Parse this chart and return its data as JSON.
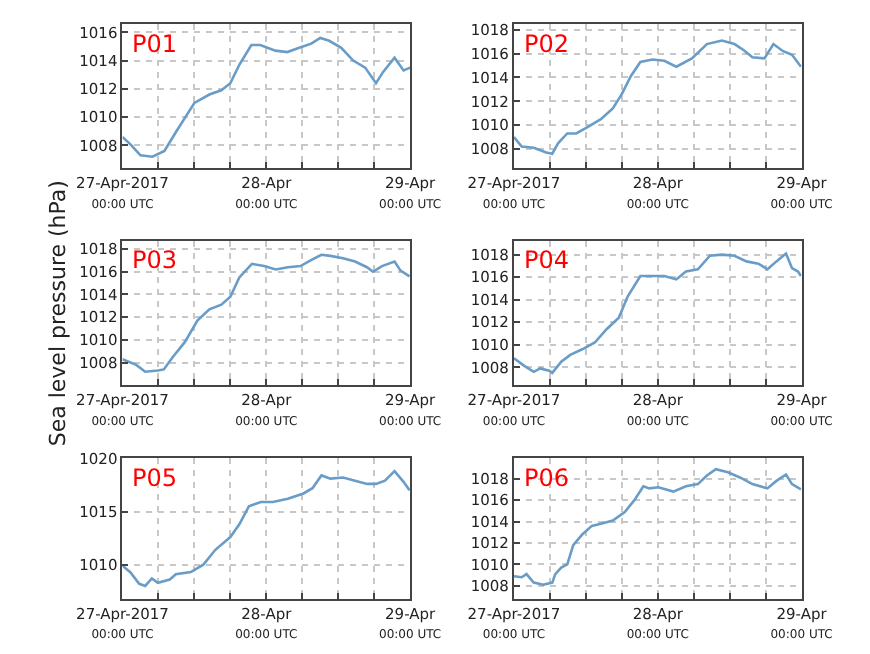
{
  "chart_data": [
    {
      "type": "line",
      "title": "P01",
      "xlim": [
        "2017-04-27T00:00",
        "2017-04-29T00:00"
      ],
      "ylim": [
        1006.4,
        1016.6
      ],
      "yticks": [
        1008,
        1010,
        1012,
        1014,
        1016
      ],
      "xticks": [
        {
          "value": "2017-04-27T00:00",
          "label": "27-Apr-2017\n00:00 UTC"
        },
        {
          "value": "2017-04-27T06:00",
          "label": null
        },
        {
          "value": "2017-04-27T12:00",
          "label": null
        },
        {
          "value": "2017-04-27T18:00",
          "label": null
        },
        {
          "value": "2017-04-28T00:00",
          "label": "28-Apr\n00:00 UTC"
        },
        {
          "value": "2017-04-28T06:00",
          "label": null
        },
        {
          "value": "2017-04-28T12:00",
          "label": null
        },
        {
          "value": "2017-04-28T18:00",
          "label": null
        },
        {
          "value": "2017-04-29T00:00",
          "label": "29-Apr\n00:00 UTC"
        }
      ],
      "grid": true,
      "series": [
        {
          "color": "#6a9cc8",
          "x": [
            "2017-04-27T00:00",
            "2017-04-27T01:30",
            "2017-04-27T03:00",
            "2017-04-27T05:00",
            "2017-04-27T07:00",
            "2017-04-27T09:00",
            "2017-04-27T10:30",
            "2017-04-27T12:00",
            "2017-04-27T14:30",
            "2017-04-27T16:30",
            "2017-04-27T18:00",
            "2017-04-27T19:30",
            "2017-04-27T21:30",
            "2017-04-27T23:00",
            "2017-04-28T01:30",
            "2017-04-28T03:30",
            "2017-04-28T05:30",
            "2017-04-28T07:30",
            "2017-04-28T09:00",
            "2017-04-28T10:30",
            "2017-04-28T12:30",
            "2017-04-28T14:30",
            "2017-04-28T16:30",
            "2017-04-28T18:18",
            "2017-04-28T19:30",
            "2017-04-28T21:24",
            "2017-04-28T22:54",
            "2017-04-29T00:00"
          ],
          "values": [
            1008.6,
            1008.0,
            1007.3,
            1007.2,
            1007.6,
            1009.0,
            1010.0,
            1011.0,
            1011.6,
            1011.9,
            1012.4,
            1013.7,
            1015.1,
            1015.1,
            1014.7,
            1014.6,
            1014.9,
            1015.2,
            1015.6,
            1015.4,
            1014.9,
            1014.0,
            1013.5,
            1012.4,
            1013.2,
            1014.2,
            1013.3,
            1013.5
          ]
        }
      ]
    },
    {
      "type": "line",
      "title": "P02",
      "xlim": [
        "2017-04-27T00:00",
        "2017-04-29T00:00"
      ],
      "ylim": [
        1006.4,
        1018.5
      ],
      "yticks": [
        1008,
        1010,
        1012,
        1014,
        1016,
        1018
      ],
      "xticks": [
        {
          "value": "2017-04-27T00:00",
          "label": "27-Apr-2017\n00:00 UTC"
        },
        {
          "value": "2017-04-27T06:00",
          "label": null
        },
        {
          "value": "2017-04-27T12:00",
          "label": null
        },
        {
          "value": "2017-04-27T18:00",
          "label": null
        },
        {
          "value": "2017-04-28T00:00",
          "label": "28-Apr\n00:00 UTC"
        },
        {
          "value": "2017-04-28T06:00",
          "label": null
        },
        {
          "value": "2017-04-28T12:00",
          "label": null
        },
        {
          "value": "2017-04-28T18:00",
          "label": null
        },
        {
          "value": "2017-04-29T00:00",
          "label": "29-Apr\n00:00 UTC"
        }
      ],
      "grid": true,
      "series": [
        {
          "color": "#6a9cc8",
          "x": [
            "2017-04-27T00:00",
            "2017-04-27T01:18",
            "2017-04-27T03:18",
            "2017-04-27T05:24",
            "2017-04-27T06:24",
            "2017-04-27T07:24",
            "2017-04-27T08:54",
            "2017-04-27T10:24",
            "2017-04-27T12:30",
            "2017-04-27T14:30",
            "2017-04-27T16:30",
            "2017-04-27T18:00",
            "2017-04-27T19:30",
            "2017-04-27T21:06",
            "2017-04-27T23:06",
            "2017-04-28T01:06",
            "2017-04-28T03:06",
            "2017-04-28T05:42",
            "2017-04-28T08:12",
            "2017-04-28T10:42",
            "2017-04-28T12:48",
            "2017-04-28T14:18",
            "2017-04-28T15:48",
            "2017-04-28T17:48",
            "2017-04-28T19:18",
            "2017-04-28T20:54",
            "2017-04-28T22:24",
            "2017-04-28T23:54"
          ],
          "values": [
            1009.0,
            1008.2,
            1008.1,
            1007.7,
            1007.6,
            1008.5,
            1009.3,
            1009.3,
            1009.9,
            1010.5,
            1011.4,
            1012.6,
            1014.1,
            1015.3,
            1015.5,
            1015.4,
            1014.9,
            1015.6,
            1016.8,
            1017.1,
            1016.8,
            1016.3,
            1015.7,
            1015.6,
            1016.8,
            1016.2,
            1015.9,
            1014.9
          ]
        }
      ]
    },
    {
      "type": "line",
      "title": "P03",
      "ylabel": "Sea level pressure (hPa)",
      "xlim": [
        "2017-04-27T00:00",
        "2017-04-29T00:00"
      ],
      "ylim": [
        1006.0,
        1018.7
      ],
      "yticks": [
        1008,
        1010,
        1012,
        1014,
        1016,
        1018
      ],
      "xticks": [
        {
          "value": "2017-04-27T00:00",
          "label": "27-Apr-2017\n00:00 UTC"
        },
        {
          "value": "2017-04-27T06:00",
          "label": null
        },
        {
          "value": "2017-04-27T12:00",
          "label": null
        },
        {
          "value": "2017-04-27T18:00",
          "label": null
        },
        {
          "value": "2017-04-28T00:00",
          "label": "28-Apr\n00:00 UTC"
        },
        {
          "value": "2017-04-28T06:00",
          "label": null
        },
        {
          "value": "2017-04-28T12:00",
          "label": null
        },
        {
          "value": "2017-04-28T18:00",
          "label": null
        },
        {
          "value": "2017-04-29T00:00",
          "label": "29-Apr\n00:00 UTC"
        }
      ],
      "grid": true,
      "series": [
        {
          "color": "#6a9cc8",
          "x": [
            "2017-04-27T00:00",
            "2017-04-27T02:18",
            "2017-04-27T03:48",
            "2017-04-27T05:54",
            "2017-04-27T06:54",
            "2017-04-27T08:24",
            "2017-04-27T10:24",
            "2017-04-27T12:30",
            "2017-04-27T14:30",
            "2017-04-27T16:30",
            "2017-04-27T18:00",
            "2017-04-27T19:30",
            "2017-04-27T21:36",
            "2017-04-27T23:36",
            "2017-04-28T01:36",
            "2017-04-28T03:36",
            "2017-04-28T05:42",
            "2017-04-28T07:42",
            "2017-04-28T09:12",
            "2017-04-28T10:42",
            "2017-04-28T12:48",
            "2017-04-28T14:48",
            "2017-04-28T16:48",
            "2017-04-28T17:48",
            "2017-04-28T19:18",
            "2017-04-28T21:24",
            "2017-04-28T22:24",
            "2017-04-28T23:54"
          ],
          "values": [
            1008.3,
            1007.8,
            1007.2,
            1007.3,
            1007.4,
            1008.5,
            1009.8,
            1011.7,
            1012.7,
            1013.1,
            1013.8,
            1015.5,
            1016.7,
            1016.5,
            1016.2,
            1016.4,
            1016.5,
            1017.1,
            1017.5,
            1017.4,
            1017.2,
            1016.9,
            1016.4,
            1016.0,
            1016.5,
            1016.9,
            1016.1,
            1015.6
          ]
        }
      ]
    },
    {
      "type": "line",
      "title": "P04",
      "xlim": [
        "2017-04-27T00:00",
        "2017-04-29T00:00"
      ],
      "ylim": [
        1006.4,
        1019.2
      ],
      "yticks": [
        1008,
        1010,
        1012,
        1014,
        1016,
        1018
      ],
      "xticks": [
        {
          "value": "2017-04-27T00:00",
          "label": "27-Apr-2017\n00:00 UTC"
        },
        {
          "value": "2017-04-27T06:00",
          "label": null
        },
        {
          "value": "2017-04-27T12:00",
          "label": null
        },
        {
          "value": "2017-04-27T18:00",
          "label": null
        },
        {
          "value": "2017-04-28T00:00",
          "label": "28-Apr\n00:00 UTC"
        },
        {
          "value": "2017-04-28T06:00",
          "label": null
        },
        {
          "value": "2017-04-28T12:00",
          "label": null
        },
        {
          "value": "2017-04-28T18:00",
          "label": null
        },
        {
          "value": "2017-04-29T00:00",
          "label": "29-Apr\n00:00 UTC"
        }
      ],
      "grid": true,
      "series": [
        {
          "color": "#6a9cc8",
          "x": [
            "2017-04-27T00:00",
            "2017-04-27T01:48",
            "2017-04-27T03:18",
            "2017-04-27T04:24",
            "2017-04-27T05:54",
            "2017-04-27T06:24",
            "2017-04-27T07:54",
            "2017-04-27T09:24",
            "2017-04-27T11:24",
            "2017-04-27T13:30",
            "2017-04-27T15:30",
            "2017-04-27T17:30",
            "2017-04-27T19:00",
            "2017-04-27T21:06",
            "2017-04-27T23:06",
            "2017-04-28T01:06",
            "2017-04-28T03:06",
            "2017-04-28T04:42",
            "2017-04-28T06:42",
            "2017-04-28T08:42",
            "2017-04-28T10:42",
            "2017-04-28T12:48",
            "2017-04-28T14:48",
            "2017-04-28T16:48",
            "2017-04-28T18:18",
            "2017-04-28T19:48",
            "2017-04-28T21:24",
            "2017-04-28T22:24",
            "2017-04-28T23:24",
            "2017-04-28T23:54"
          ],
          "values": [
            1008.8,
            1008.1,
            1007.6,
            1007.9,
            1007.7,
            1007.5,
            1008.5,
            1009.1,
            1009.6,
            1010.2,
            1011.4,
            1012.4,
            1014.3,
            1016.1,
            1016.1,
            1016.1,
            1015.8,
            1016.5,
            1016.7,
            1017.9,
            1018.0,
            1017.9,
            1017.4,
            1017.2,
            1016.7,
            1017.4,
            1018.1,
            1016.8,
            1016.5,
            1016.1
          ]
        }
      ]
    },
    {
      "type": "line",
      "title": "P05",
      "xlim": [
        "2017-04-27T00:00",
        "2017-04-29T00:00"
      ],
      "ylim": [
        1006.8,
        1020
      ],
      "yticks": [
        1010,
        1015,
        1020
      ],
      "xticks": [
        {
          "value": "2017-04-27T00:00",
          "label": "27-Apr-2017\n00:00 UTC"
        },
        {
          "value": "2017-04-27T06:00",
          "label": null
        },
        {
          "value": "2017-04-27T12:00",
          "label": null
        },
        {
          "value": "2017-04-27T18:00",
          "label": null
        },
        {
          "value": "2017-04-28T00:00",
          "label": "28-Apr\n00:00 UTC"
        },
        {
          "value": "2017-04-28T06:00",
          "label": null
        },
        {
          "value": "2017-04-28T12:00",
          "label": null
        },
        {
          "value": "2017-04-28T18:00",
          "label": null
        },
        {
          "value": "2017-04-29T00:00",
          "label": "29-Apr\n00:00 UTC"
        }
      ],
      "grid": true,
      "series": [
        {
          "color": "#6a9cc8",
          "x": [
            "2017-04-27T00:00",
            "2017-04-27T01:18",
            "2017-04-27T02:48",
            "2017-04-27T03:48",
            "2017-04-27T04:54",
            "2017-04-27T05:54",
            "2017-04-27T07:54",
            "2017-04-27T08:54",
            "2017-04-27T11:24",
            "2017-04-27T13:30",
            "2017-04-27T15:30",
            "2017-04-27T18:00",
            "2017-04-27T19:30",
            "2017-04-27T21:06",
            "2017-04-27T23:06",
            "2017-04-28T01:06",
            "2017-04-28T03:36",
            "2017-04-28T06:12",
            "2017-04-28T07:42",
            "2017-04-28T09:12",
            "2017-04-28T10:42",
            "2017-04-28T12:48",
            "2017-04-28T14:48",
            "2017-04-28T16:48",
            "2017-04-28T18:18",
            "2017-04-28T19:48",
            "2017-04-28T21:24",
            "2017-04-28T22:54",
            "2017-04-28T23:54"
          ],
          "values": [
            1009.9,
            1009.3,
            1008.2,
            1008.0,
            1008.7,
            1008.3,
            1008.6,
            1009.1,
            1009.3,
            1010.0,
            1011.4,
            1012.6,
            1013.8,
            1015.5,
            1015.9,
            1015.9,
            1016.2,
            1016.7,
            1017.2,
            1018.4,
            1018.1,
            1018.2,
            1017.9,
            1017.6,
            1017.6,
            1017.9,
            1018.8,
            1017.8,
            1017.0
          ]
        }
      ]
    },
    {
      "type": "line",
      "title": "P06",
      "xlim": [
        "2017-04-27T00:00",
        "2017-04-29T00:00"
      ],
      "ylim": [
        1006.8,
        1019.9
      ],
      "yticks": [
        1008,
        1010,
        1012,
        1014,
        1016,
        1018
      ],
      "xticks": [
        {
          "value": "2017-04-27T00:00",
          "label": "27-Apr-2017\n00:00 UTC"
        },
        {
          "value": "2017-04-27T06:00",
          "label": null
        },
        {
          "value": "2017-04-27T12:00",
          "label": null
        },
        {
          "value": "2017-04-27T18:00",
          "label": null
        },
        {
          "value": "2017-04-28T00:00",
          "label": "28-Apr\n00:00 UTC"
        },
        {
          "value": "2017-04-28T06:00",
          "label": null
        },
        {
          "value": "2017-04-28T12:00",
          "label": null
        },
        {
          "value": "2017-04-28T18:00",
          "label": null
        },
        {
          "value": "2017-04-29T00:00",
          "label": "29-Apr\n00:00 UTC"
        }
      ],
      "grid": true,
      "series": [
        {
          "color": "#6a9cc8",
          "x": [
            "2017-04-27T00:00",
            "2017-04-27T01:18",
            "2017-04-27T02:06",
            "2017-04-27T03:18",
            "2017-04-27T04:54",
            "2017-04-27T06:24",
            "2017-04-27T06:54",
            "2017-04-27T07:54",
            "2017-04-27T08:54",
            "2017-04-27T09:54",
            "2017-04-27T11:24",
            "2017-04-27T13:00",
            "2017-04-27T14:30",
            "2017-04-27T16:30",
            "2017-04-27T18:30",
            "2017-04-27T20:06",
            "2017-04-27T21:36",
            "2017-04-27T22:36",
            "2017-04-28T00:06",
            "2017-04-28T02:36",
            "2017-04-28T04:42",
            "2017-04-28T06:42",
            "2017-04-28T08:12",
            "2017-04-28T09:42",
            "2017-04-28T11:42",
            "2017-04-28T13:48",
            "2017-04-28T15:48",
            "2017-04-28T18:18",
            "2017-04-28T19:48",
            "2017-04-28T21:24",
            "2017-04-28T22:24",
            "2017-04-28T23:54"
          ],
          "values": [
            1008.9,
            1008.8,
            1009.1,
            1008.3,
            1008.1,
            1008.3,
            1009.1,
            1009.7,
            1010.0,
            1011.8,
            1012.8,
            1013.6,
            1013.8,
            1014.1,
            1014.9,
            1016.0,
            1017.3,
            1017.1,
            1017.2,
            1016.8,
            1017.3,
            1017.5,
            1018.3,
            1018.9,
            1018.6,
            1018.1,
            1017.5,
            1017.1,
            1017.8,
            1018.4,
            1017.5,
            1017.0
          ]
        }
      ]
    }
  ]
}
